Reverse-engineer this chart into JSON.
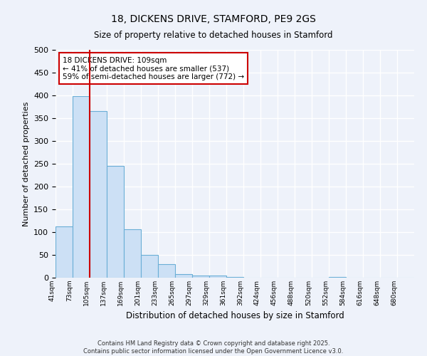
{
  "title": "18, DICKENS DRIVE, STAMFORD, PE9 2GS",
  "subtitle": "Size of property relative to detached houses in Stamford",
  "xlabel": "Distribution of detached houses by size in Stamford",
  "ylabel": "Number of detached properties",
  "bar_values": [
    113,
    399,
    365,
    245,
    106,
    50,
    30,
    8,
    5,
    5,
    1,
    0,
    0,
    0,
    0,
    0,
    1,
    0,
    0,
    0,
    0
  ],
  "categories": [
    "41sqm",
    "73sqm",
    "105sqm",
    "137sqm",
    "169sqm",
    "201sqm",
    "233sqm",
    "265sqm",
    "297sqm",
    "329sqm",
    "361sqm",
    "392sqm",
    "424sqm",
    "456sqm",
    "488sqm",
    "520sqm",
    "552sqm",
    "584sqm",
    "616sqm",
    "648sqm",
    "680sqm"
  ],
  "bar_color": "#cce0f5",
  "bar_edge_color": "#6aaed6",
  "bar_width": 1.0,
  "vline_x": 2.0,
  "vline_color": "#cc0000",
  "annotation_text": "18 DICKENS DRIVE: 109sqm\n← 41% of detached houses are smaller (537)\n59% of semi-detached houses are larger (772) →",
  "annotation_box_color": "white",
  "annotation_box_edge": "#cc0000",
  "ylim": [
    0,
    500
  ],
  "yticks": [
    0,
    50,
    100,
    150,
    200,
    250,
    300,
    350,
    400,
    450,
    500
  ],
  "bg_color": "#eef2fa",
  "grid_color": "white",
  "footer1": "Contains HM Land Registry data © Crown copyright and database right 2025.",
  "footer2": "Contains public sector information licensed under the Open Government Licence v3.0."
}
